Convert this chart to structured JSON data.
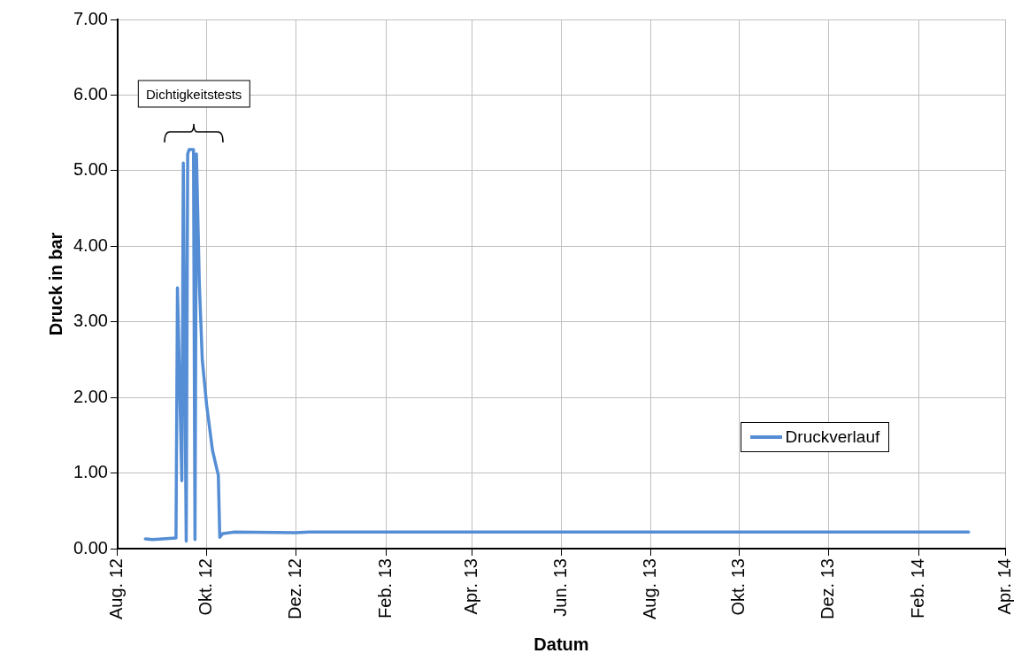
{
  "chart_data": {
    "type": "line",
    "xlabel": "Datum",
    "ylabel": "Druck in bar",
    "x": [
      "2012-08-20",
      "2012-08-25",
      "2012-09-10",
      "2012-09-11",
      "2012-09-14",
      "2012-09-15",
      "2012-09-17",
      "2012-09-18",
      "2012-09-19",
      "2012-09-22",
      "2012-09-23",
      "2012-09-24",
      "2012-09-26",
      "2012-09-28",
      "2012-10-01",
      "2012-10-05",
      "2012-10-09",
      "2012-10-10",
      "2012-10-12",
      "2012-10-20",
      "2012-12-01",
      "2012-12-10",
      "2013-06-01",
      "2014-03-07"
    ],
    "series": [
      {
        "name": "Druckverlauf",
        "color": "#558ed5",
        "values": [
          0.13,
          0.12,
          0.14,
          3.45,
          0.9,
          5.1,
          0.1,
          5.22,
          5.28,
          5.28,
          0.12,
          5.22,
          3.5,
          2.5,
          1.9,
          1.3,
          0.97,
          0.15,
          0.2,
          0.22,
          0.21,
          0.22,
          0.22,
          0.22
        ]
      }
    ],
    "xlim": [
      "2012-08-01",
      "2014-04-01"
    ],
    "xticks": [
      {
        "value": "2012-08-01",
        "label": "Aug. 12"
      },
      {
        "value": "2012-10-01",
        "label": "Okt. 12"
      },
      {
        "value": "2012-12-01",
        "label": "Dez. 12"
      },
      {
        "value": "2013-02-01",
        "label": "Feb. 13"
      },
      {
        "value": "2013-04-01",
        "label": "Apr. 13"
      },
      {
        "value": "2013-06-01",
        "label": "Jun. 13"
      },
      {
        "value": "2013-08-01",
        "label": "Aug. 13"
      },
      {
        "value": "2013-10-01",
        "label": "Okt. 13"
      },
      {
        "value": "2013-12-01",
        "label": "Dez. 13"
      },
      {
        "value": "2014-02-01",
        "label": "Feb. 14"
      },
      {
        "value": "2014-04-01",
        "label": "Apr. 14"
      }
    ],
    "ylim": [
      0,
      7
    ],
    "yticks": [
      {
        "value": 0,
        "label": "0.00"
      },
      {
        "value": 1,
        "label": "1.00"
      },
      {
        "value": 2,
        "label": "2.00"
      },
      {
        "value": 3,
        "label": "3.00"
      },
      {
        "value": 4,
        "label": "4.00"
      },
      {
        "value": 5,
        "label": "5.00"
      },
      {
        "value": 6,
        "label": "6.00"
      },
      {
        "value": 7,
        "label": "7.00"
      }
    ],
    "annotations": [
      "Dichtigkeitstests"
    ],
    "grid": true,
    "legend": "bottom right",
    "marker": "none",
    "line_style": "solid"
  }
}
